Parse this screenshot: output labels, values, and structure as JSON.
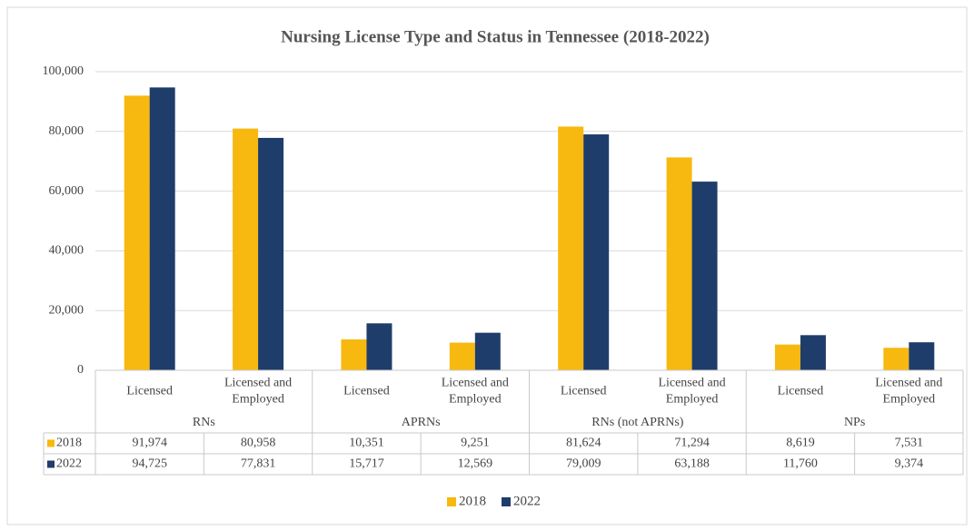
{
  "chart_data": {
    "type": "bar",
    "title": "Nursing License Type and Status in Tennessee (2018-2022)",
    "categories": [
      "Licensed",
      "Licensed and Employed",
      "Licensed",
      "Licensed and Employed",
      "Licensed",
      "Licensed and Employed",
      "Licensed",
      "Licensed and Employed"
    ],
    "groups": [
      "RNs",
      "APRNs",
      "RNs (not APRNs)",
      "NPs"
    ],
    "series": [
      {
        "name": "2018",
        "color": "#f7b90f",
        "values": [
          91974,
          80958,
          10351,
          9251,
          81624,
          71294,
          8619,
          7531
        ],
        "value_labels": [
          "91,974",
          "80,958",
          "10,351",
          "9,251",
          "81,624",
          "71,294",
          "8,619",
          "7,531"
        ]
      },
      {
        "name": "2022",
        "color": "#1f3d6b",
        "values": [
          94725,
          77831,
          15717,
          12569,
          79009,
          63188,
          11760,
          9374
        ],
        "value_labels": [
          "94,725",
          "77,831",
          "15,717",
          "12,569",
          "79,009",
          "63,188",
          "11,760",
          "9,374"
        ]
      }
    ],
    "ylim": [
      0,
      100000
    ],
    "yticks": [
      0,
      {
        "value": 20000,
        "label": "20,000"
      },
      {
        "value": 40000,
        "label": "40,000"
      },
      {
        "value": 60000,
        "label": "60,000"
      },
      {
        "value": 80000,
        "label": "80,000"
      },
      {
        "value": 100000,
        "label": "100,000"
      }
    ],
    "grid": true,
    "legend": "bottom"
  }
}
